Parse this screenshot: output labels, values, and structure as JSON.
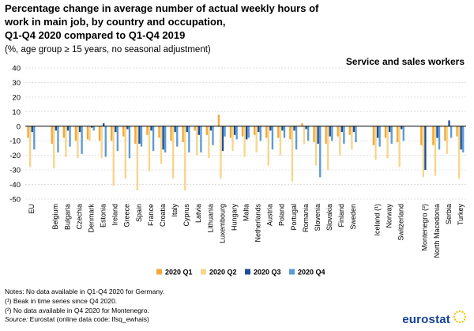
{
  "header": {
    "title_lines": [
      "Percentage change in average number of actual weekly hours of",
      "work in main job, by country and occupation,",
      "Q1-Q4 2020 compared to Q1-Q4 2019"
    ],
    "subtitle": "(%, age group ≥ 15 years, no seasonal adjustment)",
    "panel_title": "Service and sales workers"
  },
  "chart_data": {
    "type": "bar",
    "ylim": [
      -50,
      40
    ],
    "yticks": [
      40,
      30,
      20,
      10,
      0,
      -10,
      -20,
      -30,
      -40,
      -50
    ],
    "grid": true,
    "legend_position": "bottom",
    "categories": [
      "EU",
      "",
      "Belgium",
      "Bulgaria",
      "Czechia",
      "Denmark",
      "Estonia",
      "Ireland",
      "Greece",
      "Spain",
      "France",
      "Croatia",
      "Italy",
      "Cyprus",
      "Latvia",
      "Lithuania",
      "Luxembourg",
      "Hungary",
      "Malta",
      "Netherlands",
      "Austria",
      "Poland",
      "Portugal",
      "Romania",
      "Slovenia",
      "Slovakia",
      "Finland",
      "Sweden",
      "",
      "Iceland (¹)",
      "Norway",
      "Switzerland",
      "",
      "Montenegro (²)",
      "North Macedonia",
      "Serbia",
      "Turkey"
    ],
    "series": [
      {
        "name": "2020 Q1",
        "color": "#f2a93b",
        "values": [
          -8,
          null,
          -12,
          -8,
          -10,
          -9,
          -10,
          -10,
          -7,
          -12,
          -6,
          -8,
          -10,
          -11,
          -3,
          -6,
          8,
          -8,
          -7,
          -6,
          -8,
          -8,
          -9,
          2,
          -11,
          -12,
          -7,
          -6,
          null,
          -13,
          -8,
          -11,
          null,
          -13,
          -13,
          -10,
          -7
        ]
      },
      {
        "name": "2020 Q2",
        "color": "#f7d58a",
        "values": [
          -28,
          null,
          -29,
          -21,
          -22,
          -10,
          -22,
          -41,
          -36,
          -44,
          -31,
          -26,
          -36,
          -44,
          -20,
          -22,
          -36,
          -17,
          -21,
          -18,
          -27,
          -20,
          -38,
          -12,
          -27,
          -30,
          -20,
          -16,
          null,
          -23,
          -22,
          -28,
          null,
          -35,
          -34,
          -19,
          -36
        ]
      },
      {
        "name": "2020 Q3",
        "color": "#1f4e96",
        "values": [
          -4,
          null,
          -3,
          -3,
          -4,
          -1,
          2,
          -4,
          -2,
          -12,
          -3,
          -16,
          -4,
          -4,
          -6,
          -3,
          -17,
          -6,
          -9,
          -4,
          -3,
          -3,
          -3,
          -2,
          -12,
          -7,
          -4,
          -4,
          null,
          -8,
          -4,
          -2,
          null,
          -30,
          -8,
          4,
          -16
        ]
      },
      {
        "name": "2020 Q4",
        "color": "#5b9bd5",
        "values": [
          -16,
          null,
          -18,
          -14,
          -19,
          -3,
          -21,
          -17,
          -22,
          -14,
          -17,
          -18,
          -14,
          -18,
          -18,
          -13,
          -7,
          -9,
          -8,
          -10,
          -16,
          -8,
          -16,
          -10,
          -35,
          -10,
          -12,
          -11,
          null,
          -14,
          -12,
          -10,
          null,
          null,
          -16,
          -8,
          -18
        ]
      }
    ]
  },
  "notes": {
    "lines": [
      "Notes: No data available in Q1-Q4 2020 for Germany.",
      "(¹) Beak in time series since Q4 2020.",
      "(²) No data available in Q4 2020 for Montenegro."
    ],
    "source_label": "Source:",
    "source_text": " Eurostat (online data code: lfsq_ewhais)"
  },
  "branding": {
    "logo_text": "eurostat",
    "logo_color": "#164194",
    "star_color": "#f4c400"
  }
}
